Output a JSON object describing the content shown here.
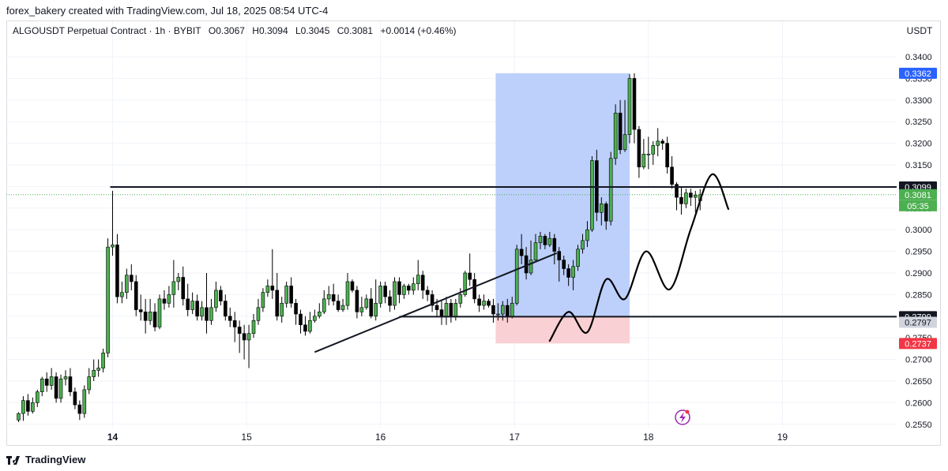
{
  "attribution": "forex_bakery created with TradingView.com, Jul 18, 2025 08:54 UTC-4",
  "symbol_bar": {
    "name": "ALGOUSDT Perpetual Contract · 1h · BYBIT",
    "open": "O0.3067",
    "high": "H0.3094",
    "low": "L0.3045",
    "close": "C0.3081",
    "change": "+0.0014 (+0.46%)"
  },
  "currency": "USDT",
  "brand": "TradingView",
  "colors": {
    "up": "#4caf50",
    "down": "#000000",
    "profit_zone": "#b9cdfb",
    "loss_zone": "#f9cdd1",
    "blue_tag": "#2962ff",
    "green_tag": "#4caf50",
    "red_tag": "#f23645",
    "gray_tag": "#d1d4dc"
  },
  "chart_data": {
    "type": "candlestick",
    "y_axis": {
      "ticks": [
        0.34,
        0.335,
        0.33,
        0.325,
        0.32,
        0.315,
        0.31,
        0.305,
        0.3,
        0.295,
        0.29,
        0.285,
        0.28,
        0.275,
        0.27,
        0.265,
        0.26,
        0.255
      ],
      "tick_labels": [
        "0.3400",
        "0.3350",
        "0.3300",
        "0.3250",
        "0.3200",
        "0.3150",
        "0.3100",
        "0.3050",
        "0.3000",
        "0.2950",
        "0.2900",
        "0.2850",
        "0.2800",
        "0.2750",
        "0.2700",
        "0.2650",
        "0.2600",
        "0.2550"
      ],
      "range": [
        0.2545,
        0.3422
      ]
    },
    "x_axis": {
      "labels": [
        "14",
        "15",
        "16",
        "17",
        "18",
        "19"
      ],
      "label_positions_index": [
        20,
        48.5,
        77,
        105.5,
        134,
        162.5
      ],
      "bold": [
        "14"
      ]
    },
    "price_tags": [
      {
        "value": 0.3362,
        "label": "0.3362",
        "style": "blue"
      },
      {
        "value": 0.3099,
        "label": "0.3099",
        "style": "black"
      },
      {
        "value": 0.3081,
        "label": "0.3081",
        "style": "green"
      },
      {
        "value": 0.2799,
        "label": "0.2799",
        "style": "black"
      },
      {
        "value": 0.2797,
        "label": "0.2797",
        "style": "gray"
      },
      {
        "value": 0.2737,
        "label": "0.2737",
        "style": "red"
      }
    ],
    "countdown": "05:35",
    "horizontal_lines": [
      {
        "value": 0.3099,
        "from_index": 19.5
      },
      {
        "value": 0.2799,
        "from_index": 81
      }
    ],
    "current_price_line": 0.3081,
    "position_tool": {
      "from_index": 101.5,
      "to_index": 130,
      "entry": 0.2799,
      "target": 0.3362,
      "stop": 0.2737
    },
    "trendline": [
      {
        "i": 63,
        "p": 0.2717
      },
      {
        "i": 114.5,
        "p": 0.2946
      }
    ],
    "projection": [
      {
        "i": 113,
        "p": 0.2743
      },
      {
        "i": 117,
        "p": 0.281
      },
      {
        "i": 121,
        "p": 0.2763
      },
      {
        "i": 125,
        "p": 0.2885
      },
      {
        "i": 129,
        "p": 0.284
      },
      {
        "i": 133.5,
        "p": 0.295
      },
      {
        "i": 138.5,
        "p": 0.2862
      },
      {
        "i": 143,
        "p": 0.3001
      },
      {
        "i": 147.5,
        "p": 0.3128
      },
      {
        "i": 151,
        "p": 0.3048
      }
    ],
    "candles": [
      [
        0.256,
        0.2575,
        0.2555,
        0.2578
      ],
      [
        0.2575,
        0.2605,
        0.2558,
        0.2615
      ],
      [
        0.2605,
        0.258,
        0.257,
        0.262
      ],
      [
        0.258,
        0.26,
        0.2575,
        0.2612
      ],
      [
        0.26,
        0.2625,
        0.259,
        0.263
      ],
      [
        0.2625,
        0.2655,
        0.2615,
        0.266
      ],
      [
        0.2655,
        0.264,
        0.2625,
        0.267
      ],
      [
        0.264,
        0.266,
        0.263,
        0.268
      ],
      [
        0.266,
        0.261,
        0.26,
        0.267
      ],
      [
        0.261,
        0.2655,
        0.26,
        0.2665
      ],
      [
        0.2655,
        0.266,
        0.264,
        0.2675
      ],
      [
        0.266,
        0.2625,
        0.2615,
        0.268
      ],
      [
        0.2625,
        0.2595,
        0.2585,
        0.2635
      ],
      [
        0.2595,
        0.2575,
        0.256,
        0.2605
      ],
      [
        0.2575,
        0.263,
        0.2565,
        0.264
      ],
      [
        0.263,
        0.266,
        0.262,
        0.268
      ],
      [
        0.266,
        0.2675,
        0.265,
        0.27
      ],
      [
        0.2675,
        0.268,
        0.266,
        0.27
      ],
      [
        0.268,
        0.2715,
        0.267,
        0.2725
      ],
      [
        0.2715,
        0.296,
        0.2705,
        0.298
      ],
      [
        0.296,
        0.2965,
        0.294,
        0.309
      ],
      [
        0.2965,
        0.2845,
        0.283,
        0.299
      ],
      [
        0.2845,
        0.2855,
        0.283,
        0.288
      ],
      [
        0.2855,
        0.2895,
        0.284,
        0.291
      ],
      [
        0.2895,
        0.288,
        0.286,
        0.292
      ],
      [
        0.288,
        0.2815,
        0.28,
        0.2895
      ],
      [
        0.2815,
        0.281,
        0.279,
        0.285
      ],
      [
        0.281,
        0.279,
        0.276,
        0.284
      ],
      [
        0.279,
        0.281,
        0.278,
        0.284
      ],
      [
        0.281,
        0.2775,
        0.2765,
        0.283
      ],
      [
        0.2775,
        0.284,
        0.277,
        0.285
      ],
      [
        0.284,
        0.283,
        0.2815,
        0.286
      ],
      [
        0.283,
        0.285,
        0.282,
        0.287
      ],
      [
        0.285,
        0.288,
        0.282,
        0.293
      ],
      [
        0.288,
        0.289,
        0.286,
        0.29
      ],
      [
        0.289,
        0.284,
        0.2825,
        0.2915
      ],
      [
        0.284,
        0.2815,
        0.28,
        0.2875
      ],
      [
        0.2815,
        0.2835,
        0.2805,
        0.2855
      ],
      [
        0.2835,
        0.28,
        0.279,
        0.285
      ],
      [
        0.28,
        0.282,
        0.279,
        0.2835
      ],
      [
        0.282,
        0.279,
        0.276,
        0.29
      ],
      [
        0.279,
        0.282,
        0.278,
        0.284
      ],
      [
        0.282,
        0.286,
        0.281,
        0.288
      ],
      [
        0.286,
        0.2835,
        0.2825,
        0.287
      ],
      [
        0.2835,
        0.28,
        0.279,
        0.285
      ],
      [
        0.28,
        0.279,
        0.2775,
        0.282
      ],
      [
        0.279,
        0.2775,
        0.274,
        0.281
      ],
      [
        0.2775,
        0.276,
        0.2715,
        0.279
      ],
      [
        0.276,
        0.2745,
        0.27,
        0.278
      ],
      [
        0.2745,
        0.276,
        0.268,
        0.278
      ],
      [
        0.276,
        0.279,
        0.275,
        0.2805
      ],
      [
        0.279,
        0.282,
        0.278,
        0.284
      ],
      [
        0.282,
        0.2855,
        0.281,
        0.2865
      ],
      [
        0.2855,
        0.287,
        0.2845,
        0.2885
      ],
      [
        0.287,
        0.286,
        0.284,
        0.2955
      ],
      [
        0.286,
        0.28,
        0.279,
        0.29
      ],
      [
        0.28,
        0.283,
        0.2785,
        0.2845
      ],
      [
        0.283,
        0.287,
        0.282,
        0.288
      ],
      [
        0.287,
        0.283,
        0.282,
        0.289
      ],
      [
        0.283,
        0.2805,
        0.278,
        0.284
      ],
      [
        0.2805,
        0.278,
        0.276,
        0.2815
      ],
      [
        0.278,
        0.2765,
        0.2755,
        0.28
      ],
      [
        0.2765,
        0.279,
        0.276,
        0.281
      ],
      [
        0.279,
        0.28,
        0.2785,
        0.2815
      ],
      [
        0.28,
        0.281,
        0.2795,
        0.283
      ],
      [
        0.281,
        0.284,
        0.2805,
        0.286
      ],
      [
        0.284,
        0.285,
        0.2825,
        0.287
      ],
      [
        0.285,
        0.2835,
        0.2825,
        0.2875
      ],
      [
        0.2835,
        0.2815,
        0.281,
        0.285
      ],
      [
        0.2815,
        0.2825,
        0.281,
        0.284
      ],
      [
        0.2825,
        0.288,
        0.2815,
        0.29
      ],
      [
        0.288,
        0.286,
        0.2855,
        0.2885
      ],
      [
        0.286,
        0.281,
        0.2795,
        0.287
      ],
      [
        0.281,
        0.282,
        0.28,
        0.2845
      ],
      [
        0.282,
        0.284,
        0.2815,
        0.285
      ],
      [
        0.284,
        0.28,
        0.2795,
        0.2865
      ],
      [
        0.28,
        0.283,
        0.279,
        0.2885
      ],
      [
        0.283,
        0.287,
        0.282,
        0.288
      ],
      [
        0.287,
        0.2845,
        0.283,
        0.288
      ],
      [
        0.2845,
        0.2825,
        0.281,
        0.286
      ],
      [
        0.2825,
        0.288,
        0.2815,
        0.289
      ],
      [
        0.288,
        0.285,
        0.283,
        0.289
      ],
      [
        0.285,
        0.287,
        0.284,
        0.2875
      ],
      [
        0.287,
        0.286,
        0.285,
        0.2875
      ],
      [
        0.286,
        0.2875,
        0.285,
        0.289
      ],
      [
        0.2875,
        0.2895,
        0.286,
        0.293
      ],
      [
        0.2895,
        0.286,
        0.284,
        0.2905
      ],
      [
        0.286,
        0.285,
        0.2835,
        0.287
      ],
      [
        0.285,
        0.2825,
        0.281,
        0.286
      ],
      [
        0.2825,
        0.2815,
        0.28,
        0.284
      ],
      [
        0.2815,
        0.28,
        0.278,
        0.2835
      ],
      [
        0.28,
        0.283,
        0.278,
        0.2845
      ],
      [
        0.283,
        0.28,
        0.2785,
        0.284
      ],
      [
        0.28,
        0.283,
        0.279,
        0.284
      ],
      [
        0.283,
        0.285,
        0.282,
        0.2865
      ],
      [
        0.285,
        0.29,
        0.2845,
        0.2905
      ],
      [
        0.29,
        0.2885,
        0.287,
        0.2945
      ],
      [
        0.2885,
        0.284,
        0.283,
        0.29
      ],
      [
        0.284,
        0.2825,
        0.281,
        0.285
      ],
      [
        0.2825,
        0.2835,
        0.2815,
        0.285
      ],
      [
        0.2835,
        0.2825,
        0.282,
        0.284
      ],
      [
        0.2825,
        0.2805,
        0.2785,
        0.284
      ],
      [
        0.2805,
        0.2805,
        0.279,
        0.283
      ],
      [
        0.2805,
        0.2825,
        0.279,
        0.2835
      ],
      [
        0.2825,
        0.28,
        0.2785,
        0.284
      ],
      [
        0.28,
        0.283,
        0.2795,
        0.2845
      ],
      [
        0.283,
        0.2955,
        0.2825,
        0.2965
      ],
      [
        0.2955,
        0.294,
        0.292,
        0.299
      ],
      [
        0.294,
        0.29,
        0.2885,
        0.296
      ],
      [
        0.29,
        0.293,
        0.2895,
        0.2975
      ],
      [
        0.293,
        0.297,
        0.2925,
        0.299
      ],
      [
        0.297,
        0.2985,
        0.2955,
        0.2995
      ],
      [
        0.2985,
        0.2965,
        0.2955,
        0.299
      ],
      [
        0.2965,
        0.298,
        0.296,
        0.2995
      ],
      [
        0.298,
        0.295,
        0.292,
        0.299
      ],
      [
        0.295,
        0.293,
        0.288,
        0.296
      ],
      [
        0.293,
        0.291,
        0.2895,
        0.294
      ],
      [
        0.291,
        0.289,
        0.287,
        0.292
      ],
      [
        0.289,
        0.2915,
        0.286,
        0.293
      ],
      [
        0.2915,
        0.2955,
        0.2905,
        0.2965
      ],
      [
        0.2955,
        0.2975,
        0.2945,
        0.299
      ],
      [
        0.2975,
        0.3,
        0.296,
        0.302
      ],
      [
        0.3,
        0.316,
        0.2995,
        0.317
      ],
      [
        0.316,
        0.304,
        0.302,
        0.3185
      ],
      [
        0.304,
        0.306,
        0.301,
        0.3075
      ],
      [
        0.306,
        0.302,
        0.3,
        0.3065
      ],
      [
        0.302,
        0.3165,
        0.301,
        0.318
      ],
      [
        0.3165,
        0.327,
        0.315,
        0.329
      ],
      [
        0.327,
        0.3185,
        0.3175,
        0.33
      ],
      [
        0.3185,
        0.322,
        0.318,
        0.33
      ],
      [
        0.322,
        0.335,
        0.32,
        0.336
      ],
      [
        0.335,
        0.3232,
        0.32,
        0.3362
      ],
      [
        0.3232,
        0.3145,
        0.312,
        0.324
      ],
      [
        0.3145,
        0.3175,
        0.314,
        0.321
      ],
      [
        0.3175,
        0.3175,
        0.314,
        0.3215
      ],
      [
        0.3175,
        0.3195,
        0.315,
        0.3205
      ],
      [
        0.3195,
        0.3205,
        0.317,
        0.3235
      ],
      [
        0.3205,
        0.32,
        0.3185,
        0.321
      ],
      [
        0.32,
        0.3145,
        0.313,
        0.3215
      ],
      [
        0.3145,
        0.3105,
        0.3095,
        0.317
      ],
      [
        0.3105,
        0.3075,
        0.3045,
        0.311
      ],
      [
        0.3075,
        0.306,
        0.3035,
        0.31
      ],
      [
        0.306,
        0.3085,
        0.305,
        0.3095
      ],
      [
        0.3085,
        0.3075,
        0.3055,
        0.3095
      ],
      [
        0.3075,
        0.308,
        0.304,
        0.309
      ],
      [
        0.3067,
        0.3081,
        0.3045,
        0.3094
      ]
    ]
  }
}
